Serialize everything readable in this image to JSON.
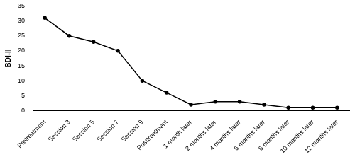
{
  "chart_data": {
    "type": "line",
    "y_label": "BDI-II",
    "categories": [
      "Pretreatment",
      "Session 3",
      "Session 5",
      "Session 7",
      "Session 9",
      "Posttreatment",
      "1 month later",
      "2 months later",
      "4 months later",
      "6 months later",
      "8 months later",
      "10 months later",
      "12 months later"
    ],
    "values": [
      31,
      25,
      23,
      20,
      10,
      6,
      2,
      3,
      3,
      2,
      1,
      1,
      1
    ],
    "color": "#000000",
    "marker": "circle",
    "line_style": "solid",
    "ylim": [
      0,
      35
    ],
    "yticks": [
      0,
      5,
      10,
      15,
      20,
      25,
      30,
      35
    ],
    "grid": false
  }
}
